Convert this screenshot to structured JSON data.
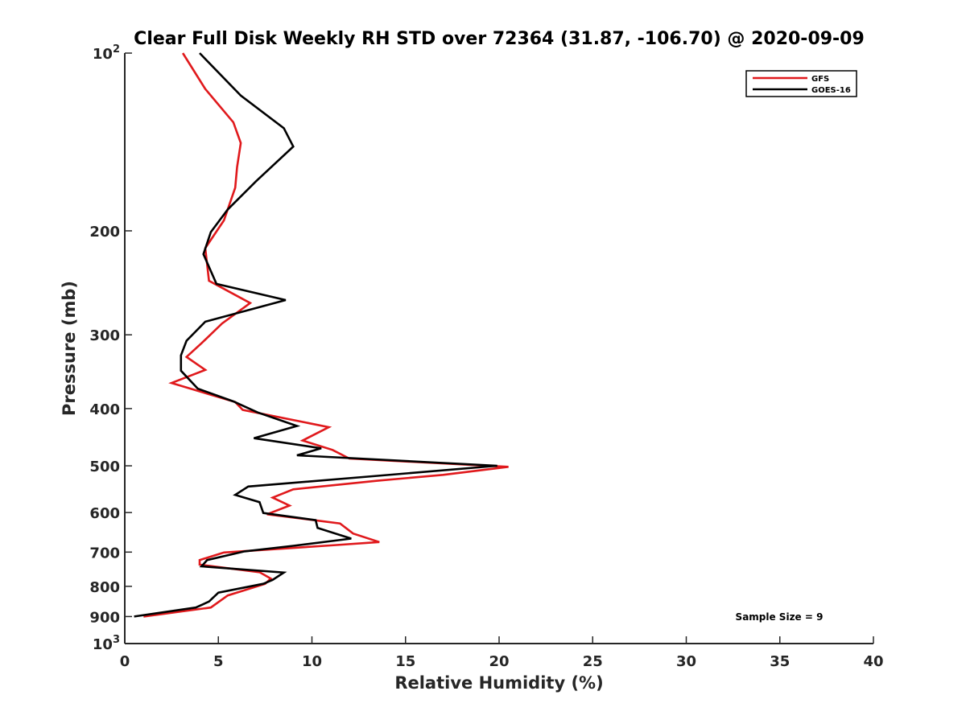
{
  "chart_data": {
    "type": "line",
    "title": "Clear Full Disk Weekly RH STD over 72364 (31.87, -106.70) @ 2020-09-09",
    "xlabel": "Relative Humidity (%)",
    "ylabel": "Pressure (mb)",
    "xlim": [
      0,
      40
    ],
    "ylim": [
      100,
      1000
    ],
    "y_scale": "log",
    "y_reversed": true,
    "grid": false,
    "legend_placement": "top-right",
    "x_ticks": [
      {
        "value": 0,
        "label": "0"
      },
      {
        "value": 5,
        "label": "5"
      },
      {
        "value": 10,
        "label": "10"
      },
      {
        "value": 15,
        "label": "15"
      },
      {
        "value": 20,
        "label": "20"
      },
      {
        "value": 25,
        "label": "25"
      },
      {
        "value": 30,
        "label": "30"
      },
      {
        "value": 35,
        "label": "35"
      },
      {
        "value": 40,
        "label": "40"
      }
    ],
    "y_ticks": [
      {
        "value": 100,
        "base": "10",
        "exp": "2"
      },
      {
        "value": 200,
        "label": "200"
      },
      {
        "value": 300,
        "label": "300"
      },
      {
        "value": 400,
        "label": "400"
      },
      {
        "value": 500,
        "label": "500"
      },
      {
        "value": 600,
        "label": "600"
      },
      {
        "value": 700,
        "label": "700"
      },
      {
        "value": 800,
        "label": "800"
      },
      {
        "value": 900,
        "label": "900"
      },
      {
        "value": 1000,
        "base": "10",
        "exp": "3"
      }
    ],
    "series": [
      {
        "name": "GFS",
        "color": "#e0191c",
        "points": [
          [
            3.1,
            100
          ],
          [
            4.3,
            115
          ],
          [
            5.8,
            131
          ],
          [
            6.2,
            142
          ],
          [
            6.0,
            156
          ],
          [
            5.9,
            169
          ],
          [
            5.3,
            192
          ],
          [
            4.3,
            214
          ],
          [
            4.5,
            243
          ],
          [
            6.7,
            265
          ],
          [
            5.2,
            287
          ],
          [
            4.1,
            310
          ],
          [
            3.3,
            327
          ],
          [
            4.3,
            344
          ],
          [
            2.5,
            362
          ],
          [
            5.9,
            390
          ],
          [
            6.3,
            402
          ],
          [
            10.9,
            430
          ],
          [
            9.5,
            453
          ],
          [
            11.1,
            470
          ],
          [
            12.0,
            486
          ],
          [
            20.5,
            502
          ],
          [
            17.0,
            518
          ],
          [
            13.5,
            530
          ],
          [
            9.0,
            548
          ],
          [
            7.9,
            566
          ],
          [
            8.8,
            584
          ],
          [
            7.6,
            604
          ],
          [
            11.5,
            626
          ],
          [
            12.2,
            651
          ],
          [
            13.6,
            673
          ],
          [
            11.0,
            682
          ],
          [
            5.3,
            701
          ],
          [
            4.0,
            722
          ],
          [
            4.0,
            735
          ],
          [
            7.2,
            757
          ],
          [
            7.8,
            776
          ],
          [
            7.5,
            792
          ],
          [
            5.5,
            829
          ],
          [
            4.6,
            869
          ],
          [
            1.0,
            900
          ]
        ]
      },
      {
        "name": "GOES-16",
        "color": "#000000",
        "points": [
          [
            4.0,
            100
          ],
          [
            6.2,
            118
          ],
          [
            8.5,
            134
          ],
          [
            9.0,
            144
          ],
          [
            7.0,
            165
          ],
          [
            5.5,
            184
          ],
          [
            4.6,
            201
          ],
          [
            4.2,
            219
          ],
          [
            4.9,
            246
          ],
          [
            8.6,
            262
          ],
          [
            4.3,
            285
          ],
          [
            3.3,
            307
          ],
          [
            3.0,
            325
          ],
          [
            3.0,
            345
          ],
          [
            3.9,
            370
          ],
          [
            5.8,
            389
          ],
          [
            7.1,
            406
          ],
          [
            9.2,
            428
          ],
          [
            6.9,
            449
          ],
          [
            10.5,
            467
          ],
          [
            9.2,
            480
          ],
          [
            19.9,
            500
          ],
          [
            13.5,
            520
          ],
          [
            6.6,
            542
          ],
          [
            5.9,
            560
          ],
          [
            7.2,
            576
          ],
          [
            7.4,
            601
          ],
          [
            10.2,
            618
          ],
          [
            10.3,
            637
          ],
          [
            12.1,
            664
          ],
          [
            9.0,
            683
          ],
          [
            6.4,
            698
          ],
          [
            4.4,
            722
          ],
          [
            4.1,
            740
          ],
          [
            8.5,
            758
          ],
          [
            7.9,
            780
          ],
          [
            7.4,
            792
          ],
          [
            5.0,
            820
          ],
          [
            4.5,
            849
          ],
          [
            3.8,
            869
          ],
          [
            0.5,
            900
          ]
        ]
      }
    ],
    "annotations": [
      {
        "text": "Sample Size = 9"
      }
    ]
  }
}
